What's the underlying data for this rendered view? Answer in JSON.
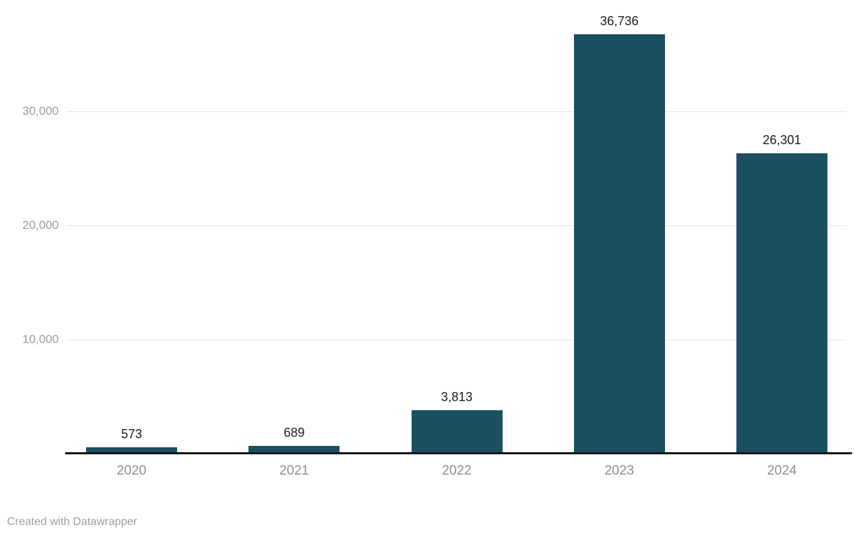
{
  "chart_data": {
    "type": "bar",
    "categories": [
      "2020",
      "2021",
      "2022",
      "2023",
      "2024"
    ],
    "values": [
      573,
      689,
      3813,
      36736,
      26301
    ],
    "value_labels": [
      "573",
      "689",
      "3,813",
      "36,736",
      "26,301"
    ],
    "title": "",
    "xlabel": "",
    "ylabel": "",
    "yticks": [
      10000,
      20000,
      30000
    ],
    "ytick_labels": [
      "10,000",
      "20,000",
      "30,000"
    ],
    "ylim": [
      0,
      39750
    ],
    "grid": "horizontal",
    "legend": "none",
    "bar_color": "#1a505f",
    "axis_line_color": "#161616",
    "gridline_color": "#e4e4e4",
    "ytick_label_color": "#9c9c9c",
    "xtick_label_color": "#8e8e8e",
    "value_label_color": "#1d1d1d"
  },
  "footer": {
    "credit": "Created with Datawrapper"
  }
}
